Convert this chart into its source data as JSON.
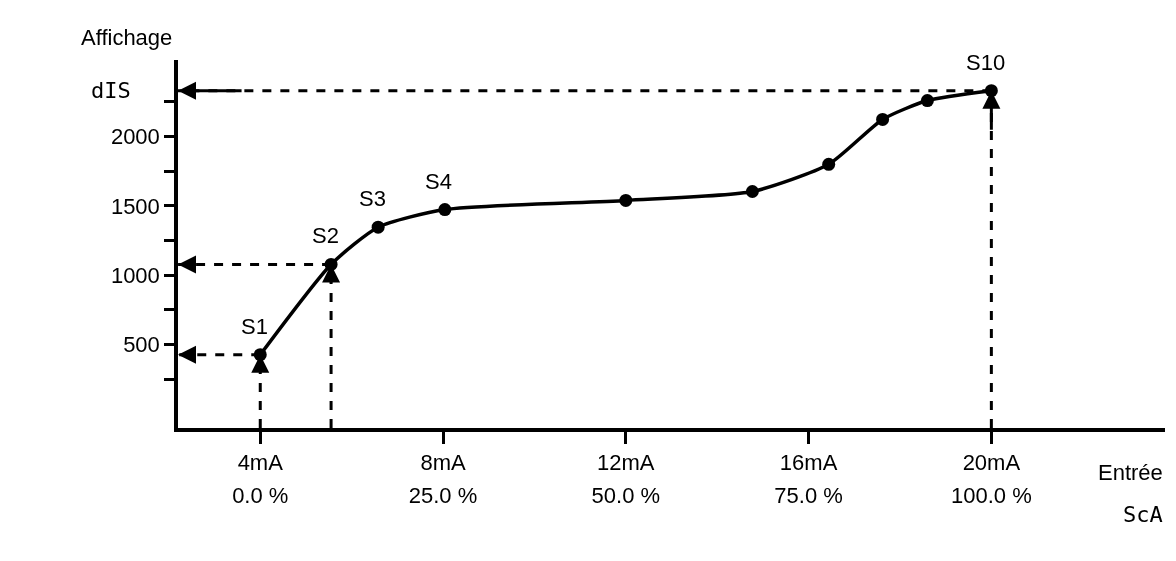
{
  "chart_data": {
    "type": "line",
    "ylabel": "Affichage",
    "xlabel": "Entrée",
    "x": [
      4,
      5.55,
      6.58,
      8.04,
      12,
      14.77,
      16.44,
      17.62,
      18.6,
      20
    ],
    "series": [
      {
        "color": "#000000",
        "values": [
          428,
          1078,
          1346,
          1473,
          1539,
          1603,
          1799,
          2122,
          2258,
          2329
        ]
      }
    ],
    "xlim": [
      2.2,
      23.8
    ],
    "ylim": [
      -100,
      2550
    ],
    "xticks": [
      {
        "value": 4,
        "label": "4mA"
      },
      {
        "value": 8,
        "label": "8mA"
      },
      {
        "value": 12,
        "label": "12mA"
      },
      {
        "value": 16,
        "label": "16mA"
      },
      {
        "value": 20,
        "label": "20mA"
      }
    ],
    "x2lim": [
      -11.25,
      123.75
    ],
    "x2label": "ScA",
    "x2ticks": [
      {
        "value": 0,
        "label": "0.0 %"
      },
      {
        "value": 25,
        "label": "25.0 %"
      },
      {
        "value": 50,
        "label": "50.0 %"
      },
      {
        "value": 75,
        "label": "75.0 %"
      },
      {
        "value": 100,
        "label": "100.0 %"
      }
    ],
    "yticks": [
      {
        "value": 250,
        "label": null
      },
      500,
      {
        "value": 750,
        "label": null
      },
      1000,
      {
        "value": 1250,
        "label": null
      },
      1500,
      {
        "value": 1750,
        "label": null
      },
      2000,
      {
        "value": 2250,
        "label": null
      }
    ],
    "ref_lines": [
      {
        "axis": "y",
        "value": 428,
        "line_style": "dashed",
        "color": "#000000"
      },
      {
        "axis": "y",
        "value": 1078,
        "line_style": "dashed",
        "color": "#000000"
      },
      {
        "axis": "y",
        "value": 2329,
        "line_style": "dashed",
        "color": "#000000",
        "label": "dIS"
      },
      {
        "axis": "x",
        "value": 4,
        "line_style": "dashed",
        "color": "#000000"
      },
      {
        "axis": "x",
        "value": 5.55,
        "line_style": "dashed",
        "color": "#000000"
      },
      {
        "axis": "x",
        "value": 20,
        "line_style": "dashed",
        "color": "#000000"
      }
    ],
    "annotations": [
      {
        "text": "S1",
        "x": 4,
        "y": 428
      },
      {
        "text": "S2",
        "x": 5.55,
        "y": 1078
      },
      {
        "text": "S3",
        "x": 6.58,
        "y": 1346
      },
      {
        "text": "S4",
        "x": 8.04,
        "y": 1473
      },
      {
        "text": "S10",
        "x": 20,
        "y": 2329
      }
    ],
    "marker": "circle",
    "line_style": "solid"
  }
}
